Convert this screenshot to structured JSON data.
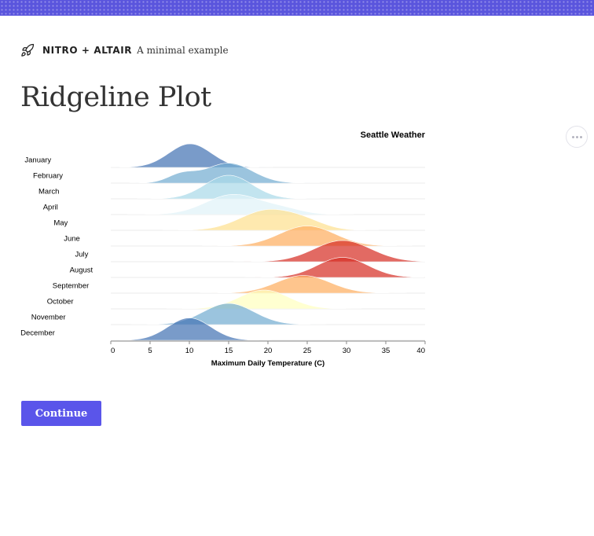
{
  "header": {
    "accent_color": "#5a55dd"
  },
  "brand": {
    "icon": "rocket-icon",
    "name": "NITRO + ALTAIR",
    "tagline": "A minimal example"
  },
  "page": {
    "title": "Ridgeline Plot"
  },
  "toolbar": {
    "more_icon": "more-horizontal-icon"
  },
  "actions": {
    "continue_label": "Continue",
    "continue_color": "#5a55ea"
  },
  "chart_data": {
    "type": "area",
    "title": "Seattle Weather",
    "xlabel": "Maximum Daily Temperature (C)",
    "ylabel": "",
    "xlim": [
      0,
      40
    ],
    "x_ticks": [
      0,
      5,
      10,
      15,
      20,
      25,
      30,
      35,
      40
    ],
    "grid": false,
    "series": [
      {
        "name": "January",
        "mean_temp": 10.1,
        "color": "#4575b4",
        "peaks": [
          [
            10.1,
            2.7,
            1.0
          ]
        ]
      },
      {
        "name": "February",
        "mean_temp": 14.5,
        "color": "#74add1",
        "peaks": [
          [
            15,
            3.0,
            0.85
          ],
          [
            9,
            1.8,
            0.35
          ]
        ]
      },
      {
        "name": "March",
        "mean_temp": 14.9,
        "color": "#abd9e9",
        "peaks": [
          [
            15,
            3.0,
            1.0
          ]
        ]
      },
      {
        "name": "April",
        "mean_temp": 15.6,
        "color": "#e0f3f8",
        "peaks": [
          [
            15.6,
            3.5,
            0.85
          ],
          [
            22,
            2.5,
            0.2
          ]
        ]
      },
      {
        "name": "May",
        "mean_temp": 20.1,
        "color": "#fee090",
        "peaks": [
          [
            20,
            3.5,
            0.85
          ],
          [
            25,
            2.5,
            0.25
          ]
        ]
      },
      {
        "name": "June",
        "mean_temp": 25.0,
        "color": "#fdae61",
        "peaks": [
          [
            25,
            3.5,
            0.85
          ]
        ]
      },
      {
        "name": "July",
        "mean_temp": 29.3,
        "color": "#d73027",
        "peaks": [
          [
            29.5,
            3.6,
            0.9
          ]
        ]
      },
      {
        "name": "August",
        "mean_temp": 29.1,
        "color": "#d73027",
        "peaks": [
          [
            29.5,
            3.2,
            0.85
          ]
        ]
      },
      {
        "name": "September",
        "mean_temp": 24.5,
        "color": "#fdae61",
        "peaks": [
          [
            24.5,
            3.4,
            0.75
          ]
        ]
      },
      {
        "name": "October",
        "mean_temp": 19.9,
        "color": "#ffffbf",
        "peaks": [
          [
            19.5,
            3.2,
            0.8
          ]
        ]
      },
      {
        "name": "November",
        "mean_temp": 14.7,
        "color": "#74add1",
        "peaks": [
          [
            15,
            3.2,
            0.9
          ]
        ]
      },
      {
        "name": "December",
        "mean_temp": 10.0,
        "color": "#4575b4",
        "peaks": [
          [
            10,
            2.7,
            0.95
          ]
        ]
      }
    ]
  }
}
